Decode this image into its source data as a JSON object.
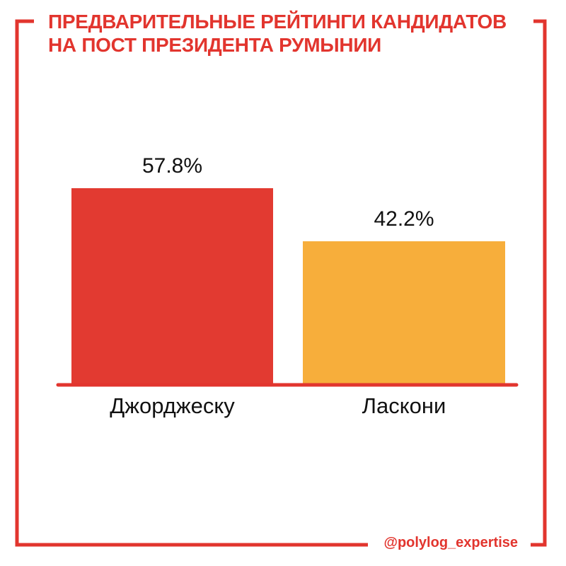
{
  "title_lines": [
    "ПРЕДВАРИТЕЛЬНЫЕ РЕЙТИНГИ КАНДИДАТОВ",
    "НА ПОСТ ПРЕЗИДЕНТА РУМЫНИИ"
  ],
  "handle": "@polylog_expertise",
  "colors": {
    "accent": "#e2352e",
    "bar_1": "#e23a31",
    "bar_2": "#f7ae3b",
    "text": "#111111"
  },
  "chart_data": {
    "type": "bar",
    "title": "ПРЕДВАРИТЕЛЬНЫЕ РЕЙТИНГИ КАНДИДАТОВ НА ПОСТ ПРЕЗИДЕНТА РУМЫНИИ",
    "categories": [
      "Джорджеску",
      "Ласкони"
    ],
    "values": [
      57.8,
      42.2
    ],
    "data_labels": [
      "57.8%",
      "42.2%"
    ],
    "colors": [
      "#e23a31",
      "#f7ae3b"
    ],
    "xlabel": "",
    "ylabel": "",
    "grid": false,
    "legend": "none"
  }
}
